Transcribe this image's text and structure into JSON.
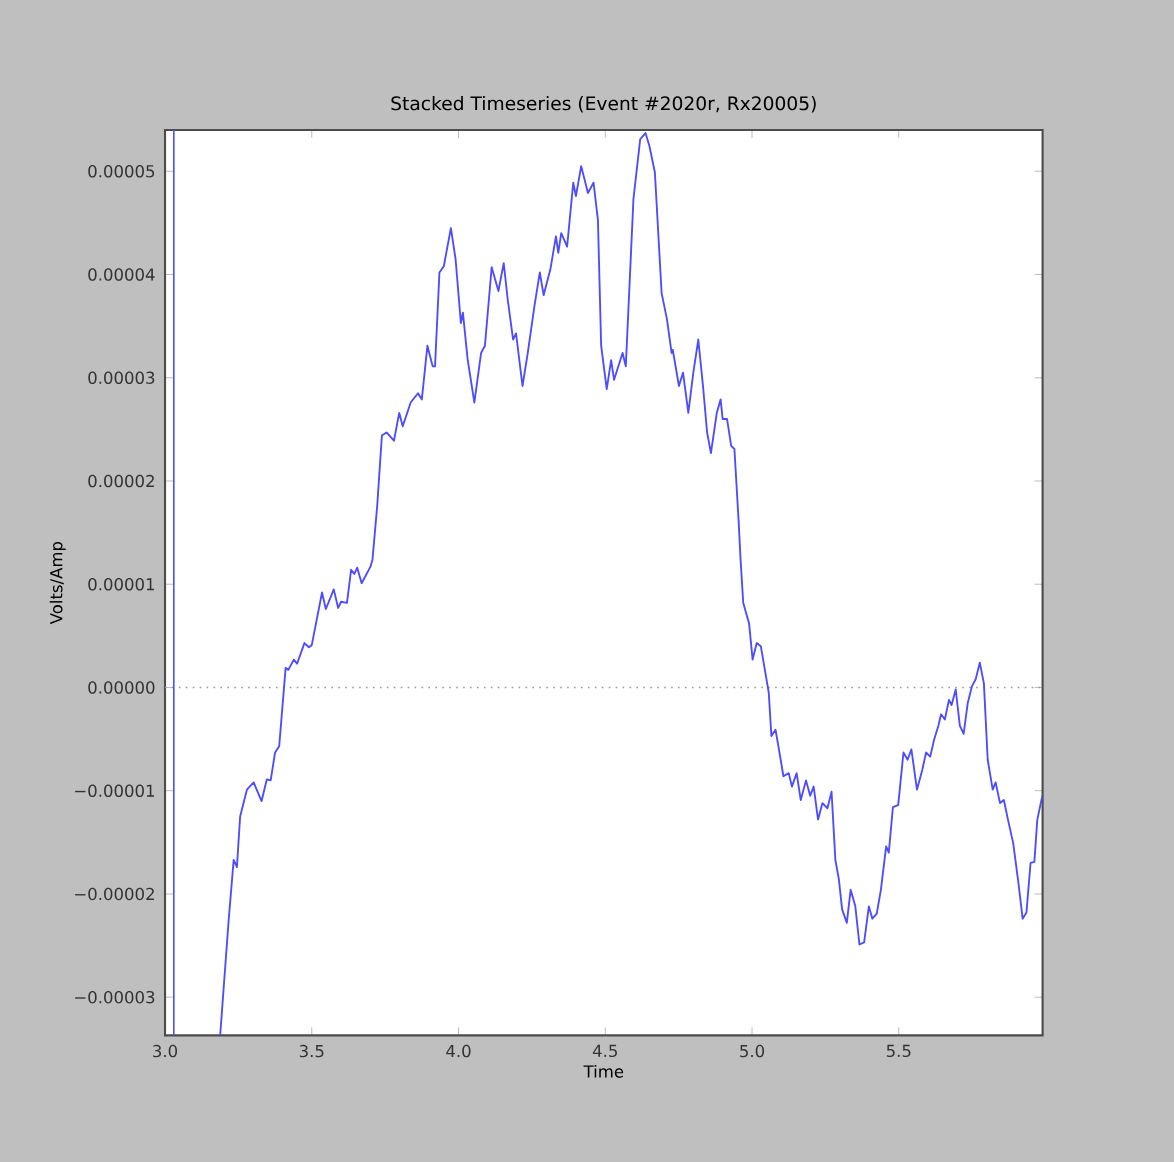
{
  "chart_data": {
    "type": "line",
    "title": "Stacked Timeseries (Event #2020r, Rx20005)",
    "xlabel": "Time",
    "ylabel": "Volts/Amp",
    "xlim": [
      3.0,
      5.99
    ],
    "ylim": [
      -3.37e-05,
      5.4e-05
    ],
    "xticks": [
      {
        "value": 3.0,
        "label": "3.0"
      },
      {
        "value": 3.5,
        "label": "3.5"
      },
      {
        "value": 4.0,
        "label": "4.0"
      },
      {
        "value": 4.5,
        "label": "4.5"
      },
      {
        "value": 5.0,
        "label": "5.0"
      },
      {
        "value": 5.5,
        "label": "5.5"
      }
    ],
    "yticks": [
      {
        "value": -3e-05,
        "label": "−0.00003"
      },
      {
        "value": -2e-05,
        "label": "−0.00002"
      },
      {
        "value": -1e-05,
        "label": "−0.00001"
      },
      {
        "value": 0,
        "label": "0.00000"
      },
      {
        "value": 1e-05,
        "label": "0.00001"
      },
      {
        "value": 2e-05,
        "label": "0.00002"
      },
      {
        "value": 3e-05,
        "label": "0.00003"
      },
      {
        "value": 4e-05,
        "label": "0.00004"
      },
      {
        "value": 5e-05,
        "label": "0.00005"
      }
    ],
    "ref_lines": [
      {
        "axis": "y",
        "value": 0,
        "color": "#999999",
        "line_style": "dotted"
      },
      {
        "axis": "x",
        "value": 3.03,
        "color": "#4d4dff",
        "line_style": "solid"
      }
    ],
    "series": [
      {
        "color": "#4d4dff",
        "x": [
          3.188,
          3.217,
          3.234,
          3.245,
          3.256,
          3.279,
          3.302,
          3.329,
          3.347,
          3.36,
          3.375,
          3.389,
          3.411,
          3.42,
          3.439,
          3.45,
          3.475,
          3.49,
          3.5,
          3.535,
          3.548,
          3.575,
          3.59,
          3.6,
          3.62,
          3.634,
          3.645,
          3.655,
          3.67,
          3.7,
          3.707,
          3.723,
          3.739,
          3.755,
          3.78,
          3.798,
          3.81,
          3.837,
          3.862,
          3.875,
          3.894,
          3.912,
          3.92,
          3.935,
          3.95,
          3.974,
          3.99,
          4.008,
          4.015,
          4.031,
          4.054,
          4.077,
          4.09,
          4.113,
          4.136,
          4.154,
          4.168,
          4.186,
          4.196,
          4.218,
          4.236,
          4.259,
          4.277,
          4.29,
          4.313,
          4.332,
          4.34,
          4.35,
          4.37,
          4.391,
          4.4,
          4.418,
          4.441,
          4.46,
          4.475,
          4.486,
          4.505,
          4.52,
          4.53,
          4.559,
          4.57,
          4.596,
          4.619,
          4.637,
          4.65,
          4.669,
          4.692,
          4.71,
          4.726,
          4.73,
          4.751,
          4.765,
          4.783,
          4.8,
          4.817,
          4.833,
          4.847,
          4.86,
          4.88,
          4.893,
          4.9,
          4.915,
          4.929,
          4.94,
          4.954,
          4.961,
          4.97,
          4.99,
          5.002,
          5.016,
          5.03,
          5.057,
          5.066,
          5.08,
          5.09,
          5.107,
          5.125,
          5.136,
          5.152,
          5.166,
          5.184,
          5.198,
          5.21,
          5.225,
          5.24,
          5.257,
          5.271,
          5.284,
          5.296,
          5.307,
          5.323,
          5.336,
          5.352,
          5.366,
          5.382,
          5.398,
          5.41,
          5.425,
          5.439,
          5.457,
          5.466,
          5.48,
          5.498,
          5.516,
          5.53,
          5.543,
          5.562,
          5.58,
          5.593,
          5.607,
          5.621,
          5.635,
          5.644,
          5.657,
          5.671,
          5.68,
          5.694,
          5.708,
          5.721,
          5.735,
          5.749,
          5.762,
          5.776,
          5.79,
          5.803,
          5.82,
          5.83,
          5.845,
          5.858,
          5.872,
          5.89,
          5.908,
          5.922,
          5.935,
          5.949,
          5.962,
          5.972,
          5.986,
          5.99
        ],
        "values": [
          -3.37e-05,
          -2.25e-05,
          -1.67e-05,
          -1.74e-05,
          -1.25e-05,
          -9.9e-06,
          -9.2e-06,
          -1.1e-05,
          -8.9e-06,
          -9e-06,
          -6.3e-06,
          -5.7e-06,
          1.9e-06,
          1.7e-06,
          2.7e-06,
          2.3e-06,
          4.3e-06,
          3.9e-06,
          4.1e-06,
          9.2e-06,
          7.6e-06,
          9.5e-06,
          7.7e-06,
          8.3e-06,
          8.2e-06,
          1.14e-05,
          1.1e-05,
          1.16e-05,
          1.01e-05,
          1.17e-05,
          1.24e-05,
          1.76e-05,
          2.44e-05,
          2.47e-05,
          2.39e-05,
          2.66e-05,
          2.53e-05,
          2.76e-05,
          2.85e-05,
          2.79e-05,
          3.31e-05,
          3.11e-05,
          3.11e-05,
          4.02e-05,
          4.08e-05,
          4.45e-05,
          4.15e-05,
          3.53e-05,
          3.63e-05,
          3.18e-05,
          2.76e-05,
          3.24e-05,
          3.31e-05,
          4.07e-05,
          3.84e-05,
          4.11e-05,
          3.75e-05,
          3.37e-05,
          3.43e-05,
          2.92e-05,
          3.24e-05,
          3.7e-05,
          4.02e-05,
          3.8e-05,
          4.05e-05,
          4.37e-05,
          4.21e-05,
          4.4e-05,
          4.27e-05,
          4.89e-05,
          4.76e-05,
          5.05e-05,
          4.79e-05,
          4.89e-05,
          4.53e-05,
          3.31e-05,
          2.89e-05,
          3.17e-05,
          2.98e-05,
          3.24e-05,
          3.11e-05,
          4.73e-05,
          5.31e-05,
          5.37e-05,
          5.25e-05,
          4.99e-05,
          3.82e-05,
          3.57e-05,
          3.24e-05,
          3.27e-05,
          2.92e-05,
          3.05e-05,
          2.66e-05,
          3.05e-05,
          3.37e-05,
          2.92e-05,
          2.47e-05,
          2.27e-05,
          2.66e-05,
          2.79e-05,
          2.6e-05,
          2.6e-05,
          2.34e-05,
          2.31e-05,
          1.63e-05,
          1.24e-05,
          8.2e-06,
          6.2e-06,
          2.7e-06,
          4.3e-06,
          4e-06,
          -5e-07,
          -4.7e-06,
          -4.1e-06,
          -5.7e-06,
          -8.6e-06,
          -8.3e-06,
          -9.6e-06,
          -8.3e-06,
          -1.09e-05,
          -9e-06,
          -1.05e-05,
          -9.6e-06,
          -1.28e-05,
          -1.12e-05,
          -1.17e-05,
          -1.01e-05,
          -1.67e-05,
          -1.86e-05,
          -2.15e-05,
          -2.28e-05,
          -1.96e-05,
          -2.12e-05,
          -2.49e-05,
          -2.47e-05,
          -2.12e-05,
          -2.24e-05,
          -2.19e-05,
          -1.96e-05,
          -1.54e-05,
          -1.6e-05,
          -1.16e-05,
          -1.14e-05,
          -6.3e-06,
          -7e-06,
          -6e-06,
          -9.9e-06,
          -8e-06,
          -6.3e-06,
          -6.7e-06,
          -5e-06,
          -3.7e-06,
          -2.6e-06,
          -3.1e-06,
          -1.2e-06,
          -1.7e-06,
          -2e-07,
          -3.7e-06,
          -4.5e-06,
          -1.5e-06,
          1e-07,
          8e-07,
          2.4e-06,
          4e-07,
          -7e-06,
          -9.9e-06,
          -9.2e-06,
          -1.12e-05,
          -1.09e-05,
          -1.28e-05,
          -1.51e-05,
          -1.9e-05,
          -2.24e-05,
          -2.18e-05,
          -1.7e-05,
          -1.69e-05,
          -1.28e-05,
          -1.09e-05,
          -1.05e-05
        ]
      }
    ]
  }
}
